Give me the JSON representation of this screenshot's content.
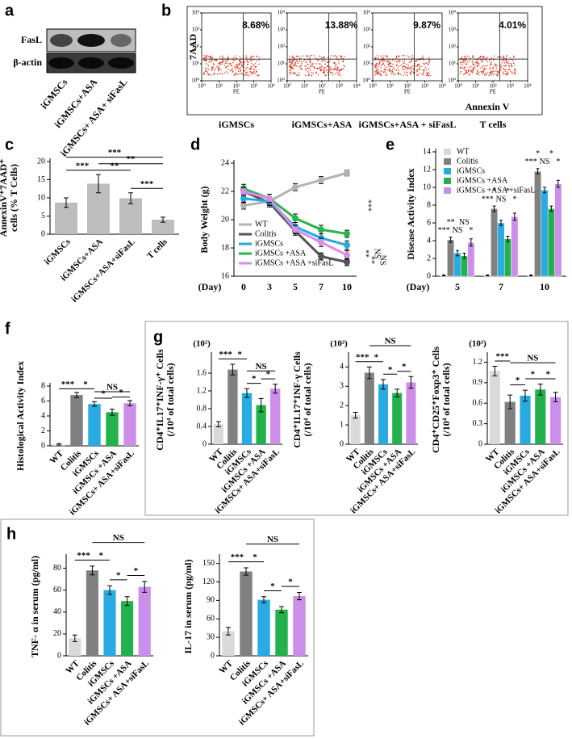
{
  "chart_data": [
    {
      "type": "blot",
      "panel": "a",
      "rows": [
        "FasL",
        "β-actin"
      ],
      "lanes": [
        "iGMSCs",
        "iGMSCs+ASA",
        "iGMSCs+ ASA+ siFasL"
      ]
    },
    {
      "type": "flow",
      "panel": "b",
      "ylabel": "7AAD",
      "xlabel": "Annexin V",
      "x_channel": "PE",
      "categories": [
        "iGMSCs",
        "iGMSCs+ASA",
        "iGMSCs+ASA + siFasL",
        "T cells"
      ],
      "values": [
        8.68,
        13.88,
        9.87,
        4.01
      ],
      "value_labels": [
        "8.68%",
        "13.88%",
        "9.87%",
        "4.01%"
      ],
      "log": true,
      "xlim": [
        1,
        10000
      ],
      "ylim": [
        1,
        10000
      ],
      "xticks": [
        {
          "value": 1,
          "label": "10⁰"
        },
        {
          "value": 10,
          "label": "10¹"
        },
        {
          "value": 100,
          "label": "10²"
        },
        {
          "value": 1000,
          "label": "10³"
        },
        {
          "value": 10000,
          "label": "10⁴"
        }
      ],
      "yticks": [
        {
          "value": 1,
          "label": "10⁰"
        },
        {
          "value": 10,
          "label": "10¹"
        },
        {
          "value": 100,
          "label": "10²"
        },
        {
          "value": 1000,
          "label": "10³"
        },
        {
          "value": 10000,
          "label": "10⁴"
        }
      ]
    },
    {
      "type": "bar",
      "panel": "c",
      "ylabel": [
        "AnnexinV⁺7AAD⁺",
        "cells (% T Cells)"
      ],
      "categories": [
        "iGMSCs",
        "iGMSCs+ASA",
        "iGMSCs+ASA+siFasL",
        "T cells"
      ],
      "values": [
        8.7,
        13.9,
        9.9,
        4.0
      ],
      "errors": [
        1.3,
        2.5,
        1.5,
        0.7
      ],
      "color": "#bdbdbd",
      "ylim": [
        0,
        20
      ],
      "yticks": [
        0,
        5,
        10,
        15,
        20
      ],
      "comparisons": [
        {
          "label": "***",
          "pair": [
            0,
            1
          ]
        },
        {
          "label": "**",
          "pair": [
            1,
            2
          ]
        },
        {
          "label": "***",
          "pair": [
            2,
            3
          ]
        },
        {
          "label": "**",
          "pair": [
            1,
            3
          ]
        },
        {
          "label": "***",
          "pair": [
            0,
            3
          ]
        }
      ]
    },
    {
      "type": "line",
      "panel": "d",
      "ylabel": "Body Weight (g)",
      "xlabel": "(Day)",
      "categories": [
        "0",
        "3",
        "5",
        "7",
        "10"
      ],
      "ylim": [
        16,
        24
      ],
      "yticks": [
        16,
        18,
        20,
        22,
        24
      ],
      "legend": "lower left",
      "series": [
        {
          "name": "WT",
          "color": "#b3b3b3",
          "values": [
            21.0,
            21.3,
            22.3,
            22.8,
            23.3
          ],
          "errors": [
            0.25,
            0.25,
            0.25,
            0.25,
            0.2
          ]
        },
        {
          "name": "Colitis",
          "color": "#555555",
          "values": [
            22.0,
            21.2,
            19.2,
            17.4,
            17.0
          ],
          "errors": [
            0.3,
            0.3,
            0.3,
            0.25,
            0.25
          ]
        },
        {
          "name": "iGMSCs",
          "color": "#29a8e0",
          "values": [
            21.5,
            21.3,
            19.5,
            18.7,
            18.2
          ],
          "errors": [
            0.3,
            0.3,
            0.3,
            0.3,
            0.3
          ]
        },
        {
          "name": "iGMSCs +ASA",
          "color": "#2bb44a",
          "values": [
            22.2,
            21.5,
            20.1,
            19.3,
            19.0
          ],
          "errors": [
            0.3,
            0.3,
            0.3,
            0.3,
            0.25
          ]
        },
        {
          "name": "iGMSCs +ASA +siFasL",
          "color": "#d98ce8",
          "values": [
            22.0,
            21.5,
            19.3,
            18.4,
            17.5
          ],
          "errors": [
            0.3,
            0.3,
            0.3,
            0.3,
            0.3
          ]
        }
      ],
      "annotations": [
        "***",
        "**",
        "**",
        "NS",
        "NS"
      ]
    },
    {
      "type": "groupedbar",
      "panel": "e",
      "ylabel": "Disease Activity Index",
      "xlabel": "(Day)",
      "categories": [
        "5",
        "7",
        "10"
      ],
      "ylim": [
        0,
        14
      ],
      "yticks": [
        0,
        2,
        4,
        6,
        8,
        10,
        12,
        14
      ],
      "legend": "upper left",
      "series": [
        {
          "name": "WT",
          "color": "#d9d9d9",
          "values": [
            0.1,
            0.1,
            0.1
          ],
          "errors": [
            0.05,
            0.05,
            0.05
          ]
        },
        {
          "name": "Colitis",
          "color": "#808080",
          "values": [
            4.1,
            7.6,
            11.8
          ],
          "errors": [
            0.3,
            0.3,
            0.3
          ]
        },
        {
          "name": "iGMSCs",
          "color": "#29abe2",
          "values": [
            2.6,
            6.0,
            9.7
          ],
          "errors": [
            0.3,
            0.3,
            0.3
          ]
        },
        {
          "name": "iGMSCs +ASA",
          "color": "#22b14c",
          "values": [
            2.3,
            4.2,
            7.6
          ],
          "errors": [
            0.3,
            0.3,
            0.3
          ]
        },
        {
          "name": "iGMSCs +ASA +siFasL",
          "color": "#cc8ee8",
          "values": [
            3.8,
            6.7,
            10.4
          ],
          "errors": [
            0.4,
            0.4,
            0.4
          ]
        }
      ],
      "annotations": [
        [
          "***",
          "**",
          "NS",
          "NS",
          "*"
        ],
        [
          "***",
          "*",
          "NS",
          "*",
          "*"
        ],
        [
          "***",
          "*",
          "NS",
          "*",
          "*"
        ]
      ]
    },
    {
      "type": "bar",
      "panel": "f",
      "ylabel": "Histological Activity Index",
      "categories": [
        "WT",
        "Colitis",
        "iGMSCs",
        "iGMSCs +ASA",
        "iGMSCs+ ASA+siFasL"
      ],
      "values": [
        0.2,
        6.8,
        5.6,
        4.5,
        5.7
      ],
      "errors": [
        0.1,
        0.35,
        0.3,
        0.4,
        0.35
      ],
      "colors": [
        "#d9d9d9",
        "#808080",
        "#29abe2",
        "#22b14c",
        "#cc8ee8"
      ],
      "ylim": [
        0,
        8
      ],
      "yticks": [
        0,
        2,
        4,
        6,
        8
      ],
      "comparisons": [
        {
          "label": "***",
          "pair": [
            0,
            1
          ]
        },
        {
          "label": "*",
          "pair": [
            1,
            2
          ]
        },
        {
          "label": "*",
          "pair": [
            2,
            3
          ]
        },
        {
          "label": "*",
          "pair": [
            3,
            4
          ]
        },
        {
          "label": "NS",
          "pair": [
            2,
            4
          ]
        }
      ]
    },
    {
      "type": "bar",
      "panel": "g",
      "scale_note": "(10²)",
      "ylabel": [
        "CD4⁺IL17⁺INF-γ⁺ Cells",
        "(/10⁴ of total cells)"
      ],
      "categories": [
        "WT",
        "Colitis",
        "iGMSCs",
        "iGMSCs +ASA",
        "iGMSCs+ ASA+siFasL"
      ],
      "values": [
        0.45,
        1.68,
        1.15,
        0.88,
        1.25
      ],
      "errors": [
        0.06,
        0.12,
        0.1,
        0.15,
        0.1
      ],
      "colors": [
        "#d9d9d9",
        "#808080",
        "#29abe2",
        "#22b14c",
        "#cc8ee8"
      ],
      "ylim": [
        0,
        2.0
      ],
      "yticks": [
        0,
        0.4,
        0.8,
        1.2,
        1.6
      ],
      "comparisons": [
        {
          "label": "***",
          "pair": [
            0,
            1
          ]
        },
        {
          "label": "*",
          "pair": [
            1,
            2
          ]
        },
        {
          "label": "*",
          "pair": [
            2,
            3
          ]
        },
        {
          "label": "*",
          "pair": [
            3,
            4
          ]
        },
        {
          "label": "NS",
          "pair": [
            2,
            4
          ]
        }
      ]
    },
    {
      "type": "bar",
      "scale_note": "(10²)",
      "ylabel": [
        "CD4⁺IL17⁺INF-γ Cells",
        "(/10⁴ of total cells)"
      ],
      "categories": [
        "WT",
        "Colitis",
        "iGMSCs",
        "iGMSCs +ASA",
        "iGMSCs+ ASA+siFasL"
      ],
      "values": [
        1.5,
        3.7,
        3.1,
        2.65,
        3.2
      ],
      "errors": [
        0.15,
        0.3,
        0.25,
        0.2,
        0.3
      ],
      "colors": [
        "#d9d9d9",
        "#808080",
        "#29abe2",
        "#22b14c",
        "#cc8ee8"
      ],
      "ylim": [
        0,
        4.6
      ],
      "yticks": [
        0,
        1,
        2,
        3,
        4
      ],
      "comparisons": [
        {
          "label": "***",
          "pair": [
            0,
            1
          ]
        },
        {
          "label": "*",
          "pair": [
            1,
            2
          ]
        },
        {
          "label": "*",
          "pair": [
            2,
            3
          ]
        },
        {
          "label": "*",
          "pair": [
            3,
            4
          ]
        },
        {
          "label": "NS",
          "pair": [
            1,
            4
          ]
        }
      ]
    },
    {
      "type": "bar",
      "scale_note": "(10²)",
      "ylabel": [
        "CD4⁺CD25⁺Foxp3⁺ Cells",
        "(/10⁴ of total cells)"
      ],
      "categories": [
        "WT",
        "Colitis",
        "iGMSCs",
        "iGMSCs +ASA",
        "iGMSCs+ ASA+siFasL"
      ],
      "values": [
        1.07,
        0.62,
        0.71,
        0.8,
        0.69
      ],
      "errors": [
        0.07,
        0.1,
        0.08,
        0.08,
        0.07
      ],
      "colors": [
        "#d9d9d9",
        "#808080",
        "#29abe2",
        "#22b14c",
        "#cc8ee8"
      ],
      "ylim": [
        0,
        1.3
      ],
      "yticks": [
        0,
        0.3,
        0.6,
        0.9,
        1.2
      ],
      "comparisons": [
        {
          "label": "***",
          "pair": [
            0,
            1
          ]
        },
        {
          "label": "*",
          "pair": [
            1,
            2
          ]
        },
        {
          "label": "*",
          "pair": [
            2,
            3
          ]
        },
        {
          "label": "*",
          "pair": [
            3,
            4
          ]
        },
        {
          "label": "NS",
          "pair": [
            1,
            4
          ]
        }
      ]
    },
    {
      "type": "bar",
      "panel": "h",
      "ylabel": "TNF- α in serum (pg/ml)",
      "categories": [
        "WT",
        "Colitis",
        "iGMSCs",
        "iGMSCs +ASA",
        "iGMSCs+ ASA+siFasL"
      ],
      "values": [
        16,
        78,
        60,
        50,
        63
      ],
      "errors": [
        3,
        4,
        4,
        4,
        5
      ],
      "colors": [
        "#d9d9d9",
        "#808080",
        "#29abe2",
        "#22b14c",
        "#cc8ee8"
      ],
      "ylim": [
        0,
        90
      ],
      "yticks": [
        0,
        20,
        40,
        60,
        80
      ],
      "comparisons": [
        {
          "label": "***",
          "pair": [
            0,
            1
          ]
        },
        {
          "label": "*",
          "pair": [
            1,
            2
          ]
        },
        {
          "label": "*",
          "pair": [
            2,
            3
          ]
        },
        {
          "label": "*",
          "pair": [
            3,
            4
          ]
        },
        {
          "label": "NS",
          "pair": [
            1,
            4
          ]
        }
      ]
    },
    {
      "type": "bar",
      "ylabel": "IL-17 in serum (pg/ml)",
      "categories": [
        "WT",
        "Colitis",
        "iGMSCs",
        "iGMSCs +ASA",
        "iGMSCs+ ASA+siFasL"
      ],
      "values": [
        40,
        137,
        91,
        75,
        97
      ],
      "errors": [
        6,
        6,
        5,
        5,
        6
      ],
      "colors": [
        "#d9d9d9",
        "#808080",
        "#29abe2",
        "#22b14c",
        "#cc8ee8"
      ],
      "ylim": [
        0,
        160
      ],
      "yticks": [
        0,
        30,
        60,
        90,
        120,
        150
      ],
      "comparisons": [
        {
          "label": "***",
          "pair": [
            0,
            1
          ]
        },
        {
          "label": "*",
          "pair": [
            1,
            2
          ]
        },
        {
          "label": "*",
          "pair": [
            2,
            3
          ]
        },
        {
          "label": "*",
          "pair": [
            3,
            4
          ]
        },
        {
          "label": "NS",
          "pair": [
            1,
            4
          ]
        }
      ]
    }
  ]
}
